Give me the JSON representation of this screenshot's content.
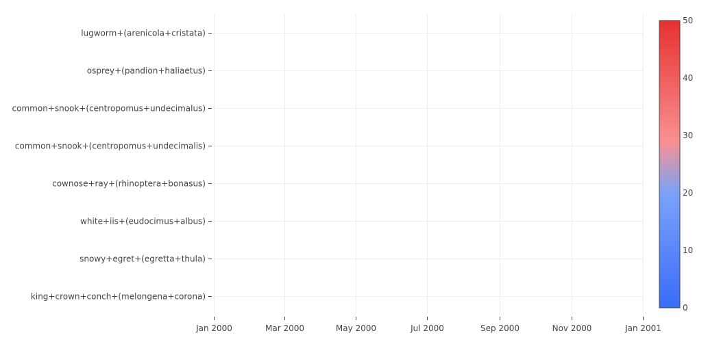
{
  "chart_data": {
    "type": "heatmap",
    "title": "",
    "xlabel": "",
    "ylabel": "",
    "categories_y": [
      "lugworm+(arenicola+cristata)",
      "osprey+(pandion+haliaetus)",
      "common+snook+(centropomus+undecimalus)",
      "common+snook+(centropomus+undecimalis)",
      "cownose+ray+(rhinoptera+bonasus)",
      "white+iis+(eudocimus+albus)",
      "snowy+egret+(egretta+thula)",
      "king+crown+conch+(melongena+corona)"
    ],
    "x_ticks": [
      {
        "date": "2000-01-01",
        "label": "Jan 2000"
      },
      {
        "date": "2000-03-01",
        "label": "Mar 2000"
      },
      {
        "date": "2000-05-01",
        "label": "May 2000"
      },
      {
        "date": "2000-07-01",
        "label": "Jul 2000"
      },
      {
        "date": "2000-09-01",
        "label": "Sep 2000"
      },
      {
        "date": "2000-11-01",
        "label": "Nov 2000"
      },
      {
        "date": "2001-01-01",
        "label": "Jan 2001"
      }
    ],
    "xlim": [
      "2000-01-01",
      "2001-01-01"
    ],
    "values": [],
    "grid": true,
    "colorscale": {
      "min": 0,
      "max": 50,
      "stops": [
        "#3a6cf8",
        "#7ba3f9",
        "#f99090",
        "#e8302f"
      ],
      "ticks": [
        0,
        10,
        20,
        30,
        40,
        50
      ]
    }
  }
}
